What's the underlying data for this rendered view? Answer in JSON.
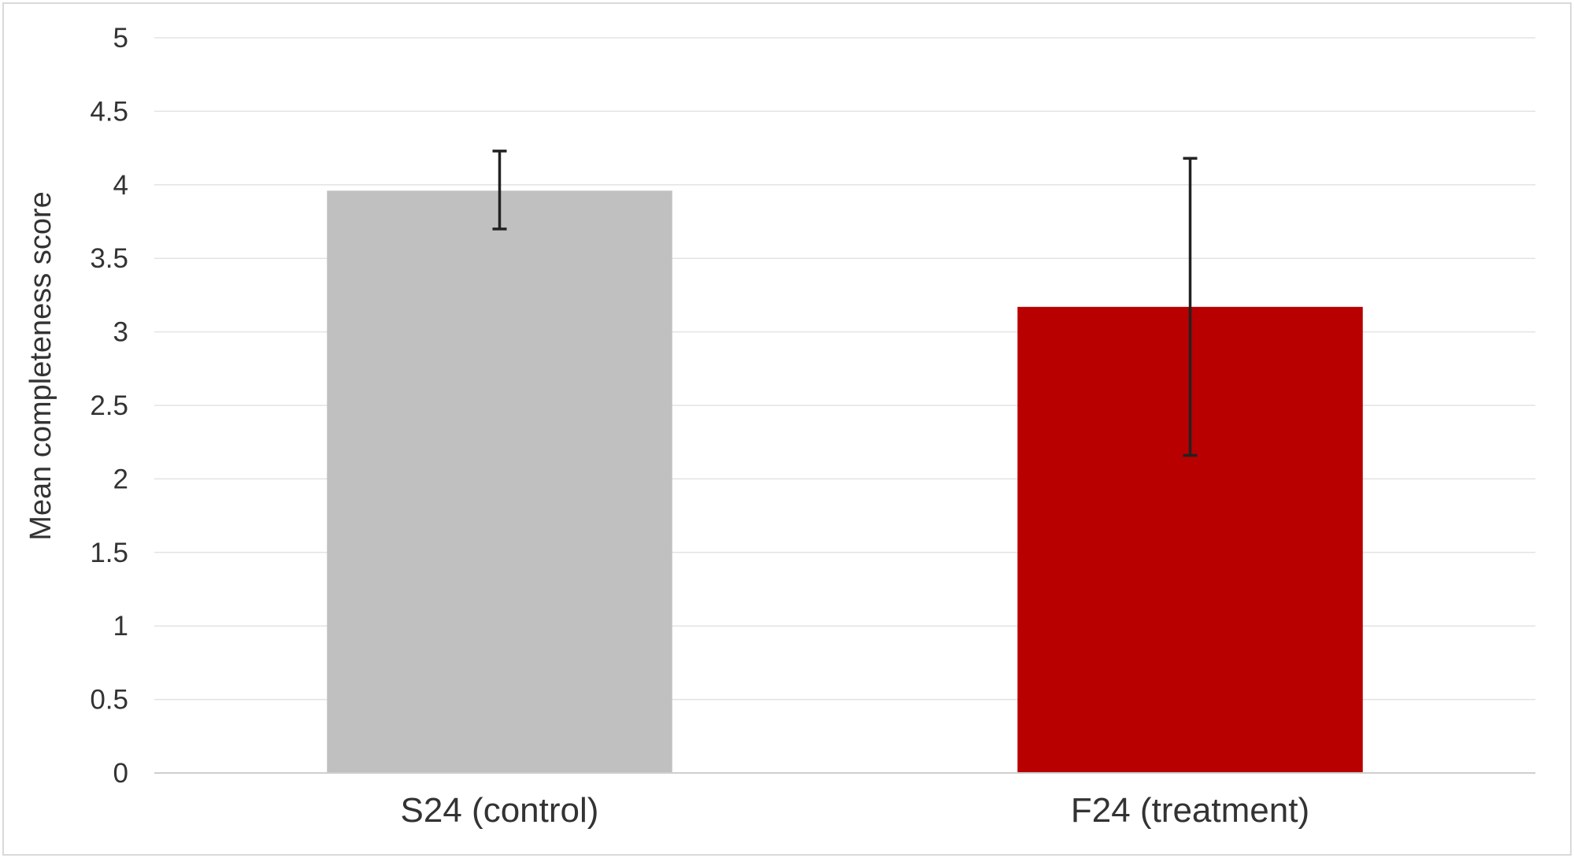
{
  "chart_data": {
    "type": "bar",
    "categories": [
      "S24 (control)",
      "F24 (treatment)"
    ],
    "values": [
      3.96,
      3.17
    ],
    "error_low": [
      3.7,
      2.16
    ],
    "error_high": [
      4.23,
      4.18
    ],
    "colors": [
      "#c0c0c0",
      "#b80000"
    ],
    "ylabel": "Mean completeness score",
    "xlabel": "",
    "title": "",
    "ylim": [
      0,
      5
    ],
    "yticks": [
      "0",
      "0.5",
      "1",
      "1.5",
      "2",
      "2.5",
      "3",
      "3.5",
      "4",
      "4.5",
      "5"
    ],
    "grid": true,
    "legend": "none"
  }
}
